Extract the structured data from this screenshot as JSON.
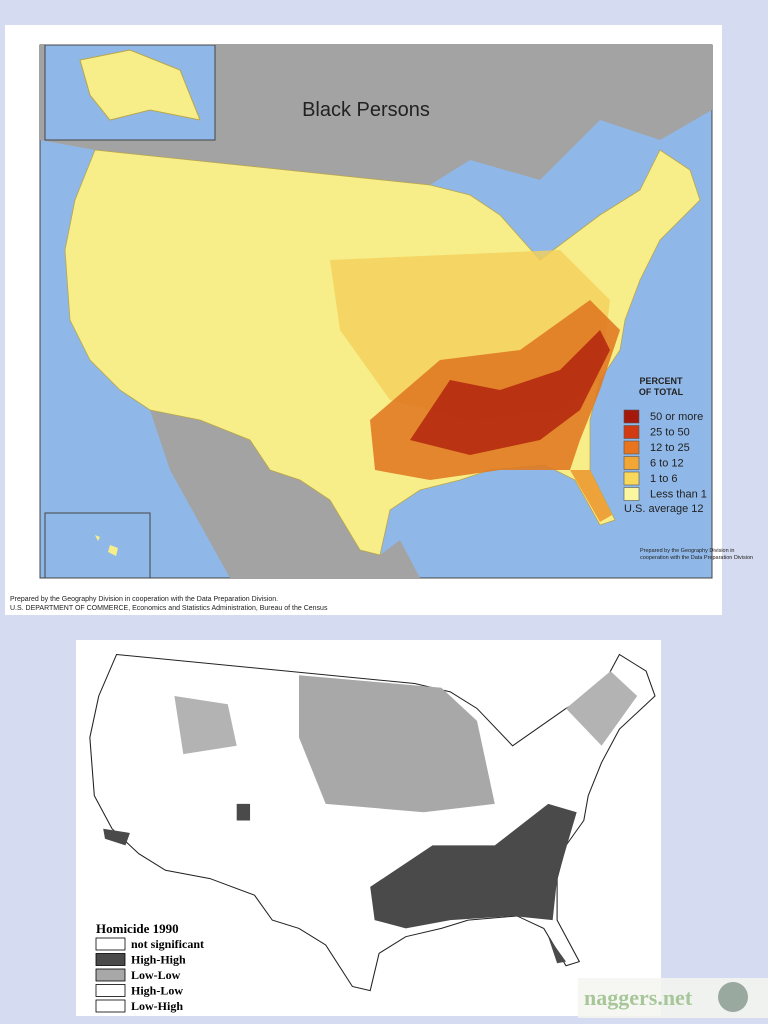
{
  "top_map": {
    "title": "Black Persons",
    "legend": {
      "title_lines": [
        "PERCENT",
        "OF TOTAL"
      ],
      "items": [
        {
          "label": "50 or more",
          "color": "#a5180c"
        },
        {
          "label": "25 to 50",
          "color": "#d23a12"
        },
        {
          "label": "12 to 25",
          "color": "#e8741e"
        },
        {
          "label": "6 to 12",
          "color": "#f2a634"
        },
        {
          "label": "1 to 6",
          "color": "#f8d85a"
        },
        {
          "label": "Less than 1",
          "color": "#fbf6a0"
        }
      ],
      "note": "U.S. average 12"
    },
    "map_credit": [
      "Prepared by the Geography Division in",
      "cooperation with the Data Preparation Division"
    ],
    "credits": [
      "Prepared by the Geography Division in cooperation with the Data Preparation Division.",
      "U.S. DEPARTMENT OF COMMERCE, Economics and Statistics Administration, Bureau of the Census"
    ]
  },
  "bottom_map": {
    "legend": {
      "title": "Homicide 1990",
      "items": [
        {
          "label": "not significant",
          "color": "#ffffff"
        },
        {
          "label": "High-High",
          "color": "#4a4a4a"
        },
        {
          "label": "Low-Low",
          "color": "#a8a8a8"
        },
        {
          "label": "High-Low",
          "color": "#ffffff"
        },
        {
          "label": "Low-High",
          "color": "#ffffff"
        }
      ]
    }
  },
  "watermark": "naggers.net"
}
